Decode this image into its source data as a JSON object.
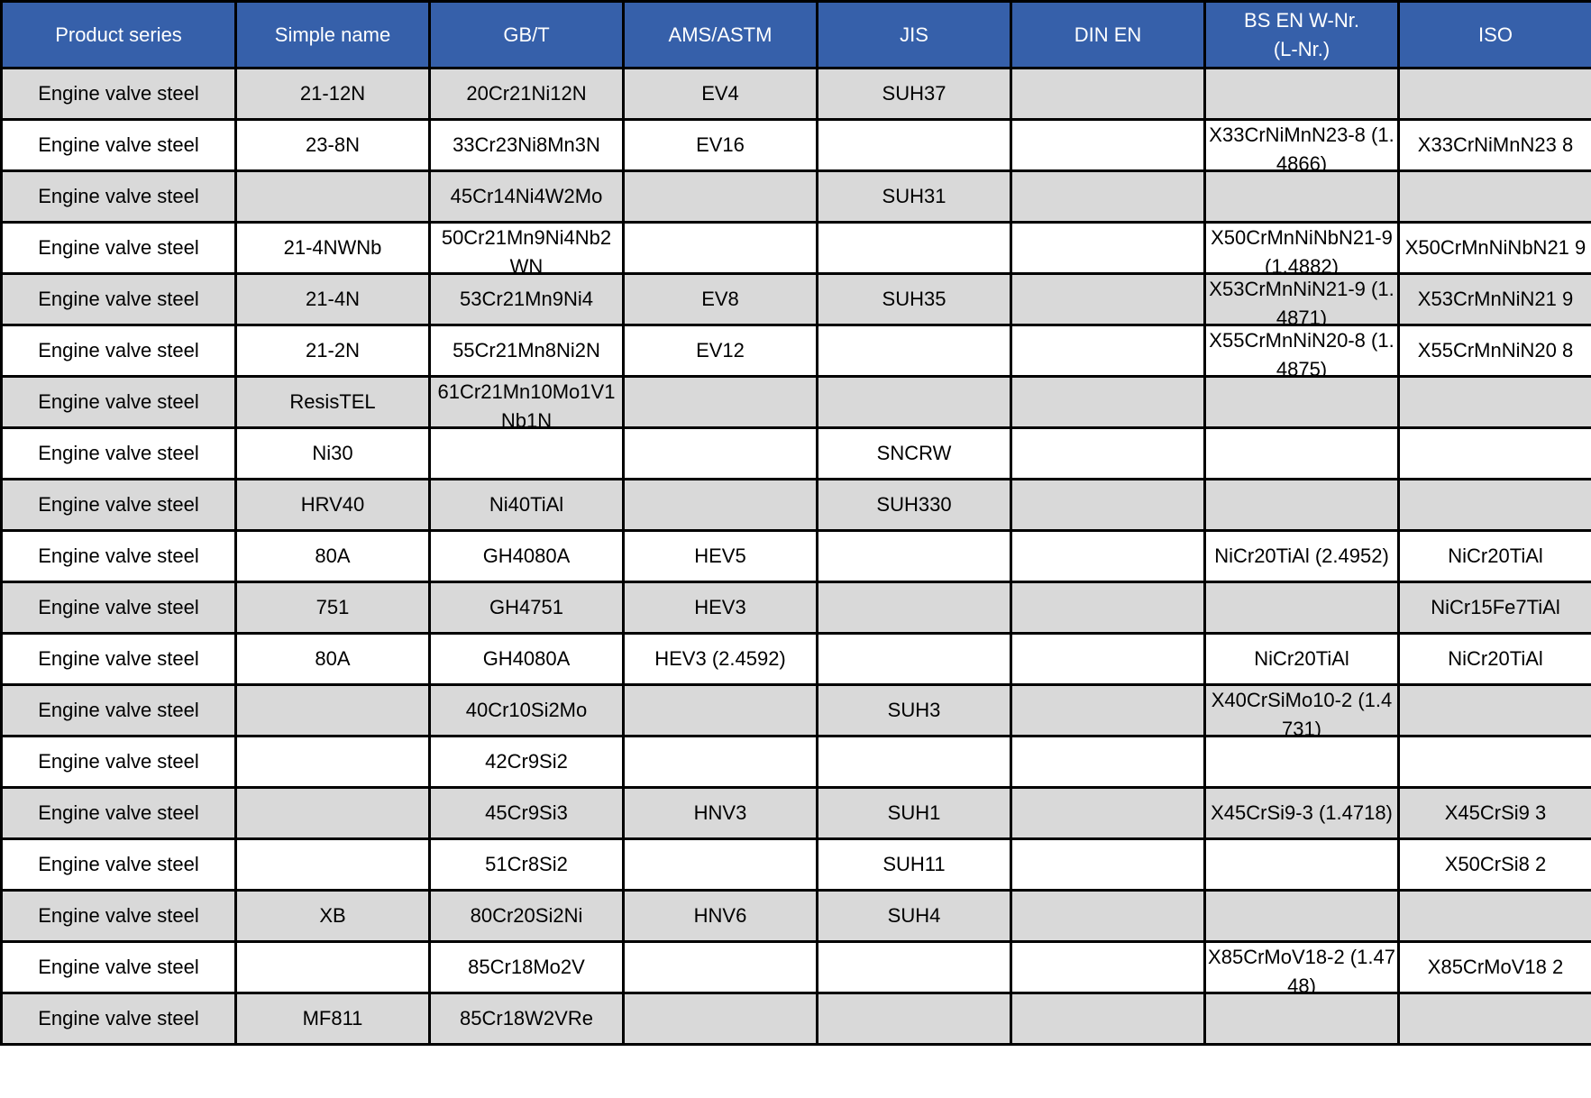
{
  "columns": [
    "Product series",
    "Simple name",
    "GB/T",
    "AMS/ASTM",
    "JIS",
    "DIN EN",
    "BS EN W-Nr.\n(L-Nr.)",
    "ISO"
  ],
  "colors": {
    "header_bg": "#3660AA",
    "row_alt_bg": "#D9D9D9",
    "row_bg": "#FFFFFF",
    "border": "#000000"
  },
  "rows": [
    [
      "Engine valve steel",
      "21-12N",
      "20Cr21Ni12N",
      "EV4",
      "SUH37",
      "",
      "",
      ""
    ],
    [
      "Engine valve steel",
      "23-8N",
      "33Cr23Ni8Mn3N",
      "EV16",
      "",
      "",
      "X33CrNiMnN23-8 (1.4866)",
      "X33CrNiMnN23 8"
    ],
    [
      "Engine valve steel",
      "",
      "45Cr14Ni4W2Mo",
      "",
      "SUH31",
      "",
      "",
      ""
    ],
    [
      "Engine valve steel",
      "21-4NWNb",
      "50Cr21Mn9Ni4Nb2WN",
      "",
      "",
      "",
      "X50CrMnNiNbN21-9 (1.4882)",
      "X50CrMnNiNbN21 9"
    ],
    [
      "Engine valve steel",
      "21-4N",
      "53Cr21Mn9Ni4",
      "EV8",
      "SUH35",
      "",
      "X53CrMnNiN21-9 (1.4871)",
      "X53CrMnNiN21 9"
    ],
    [
      "Engine valve steel",
      "21-2N",
      "55Cr21Mn8Ni2N",
      "EV12",
      "",
      "",
      "X55CrMnNiN20-8 (1.4875)",
      "X55CrMnNiN20 8"
    ],
    [
      "Engine valve steel",
      "ResisTEL",
      "61Cr21Mn10Mo1V1Nb1N",
      "",
      "",
      "",
      "",
      ""
    ],
    [
      "Engine valve steel",
      "Ni30",
      "",
      "",
      "SNCRW",
      "",
      "",
      ""
    ],
    [
      "Engine valve steel",
      "HRV40",
      "Ni40TiAl",
      "",
      "SUH330",
      "",
      "",
      ""
    ],
    [
      "Engine valve steel",
      "80A",
      "GH4080A",
      "HEV5",
      "",
      "",
      "NiCr20TiAl (2.4952)",
      "NiCr20TiAl"
    ],
    [
      "Engine valve steel",
      "751",
      "GH4751",
      "HEV3",
      "",
      "",
      "",
      "NiCr15Fe7TiAl"
    ],
    [
      "Engine valve steel",
      "80A",
      "GH4080A",
      "HEV3 (2.4592)",
      "",
      "",
      "NiCr20TiAl",
      "NiCr20TiAl"
    ],
    [
      "Engine valve steel",
      "",
      "40Cr10Si2Mo",
      "",
      "SUH3",
      "",
      "X40CrSiMo10-2 (1.4731)",
      ""
    ],
    [
      "Engine valve steel",
      "",
      "42Cr9Si2",
      "",
      "",
      "",
      "",
      ""
    ],
    [
      "Engine valve steel",
      "",
      "45Cr9Si3",
      "HNV3",
      "SUH1",
      "",
      "X45CrSi9-3 (1.4718)",
      "X45CrSi9 3"
    ],
    [
      "Engine valve steel",
      "",
      "51Cr8Si2",
      "",
      "SUH11",
      "",
      "",
      "X50CrSi8 2"
    ],
    [
      "Engine valve steel",
      "XB",
      "80Cr20Si2Ni",
      "HNV6",
      "SUH4",
      "",
      "",
      ""
    ],
    [
      "Engine valve steel",
      "",
      "85Cr18Mo2V",
      "",
      "",
      "",
      "X85CrMoV18-2 (1.4748)",
      "X85CrMoV18 2"
    ],
    [
      "Engine valve steel",
      "MF811",
      "85Cr18W2VRe",
      "",
      "",
      "",
      "",
      ""
    ]
  ]
}
